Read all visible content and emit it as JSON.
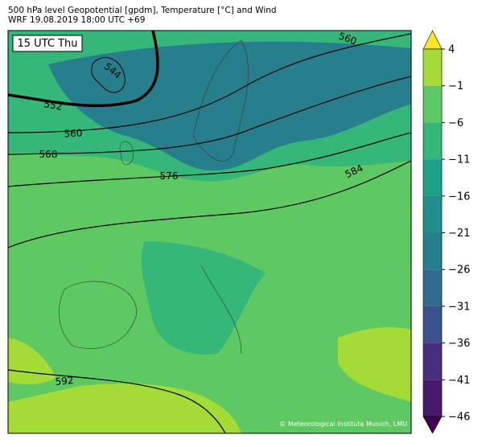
{
  "header": {
    "title": "500 hPa level Geopotential [gpdm], Temperature [°C] and Wind",
    "subtitle": "WRF 19.08.2019 18:00 UTC +69"
  },
  "map": {
    "time_label": "15 UTC Thu",
    "contour_labels": [
      544,
      552,
      560,
      560,
      568,
      576,
      584,
      592
    ],
    "credit": "© Meteorological Institute Munich, LMU"
  },
  "colorbar": {
    "ticks": [
      {
        "value": 4,
        "label": "4"
      },
      {
        "value": -1,
        "label": "−1"
      },
      {
        "value": -6,
        "label": "−6"
      },
      {
        "value": -11,
        "label": "−11"
      },
      {
        "value": -16,
        "label": "−16"
      },
      {
        "value": -21,
        "label": "−21"
      },
      {
        "value": -26,
        "label": "−26"
      },
      {
        "value": -31,
        "label": "−31"
      },
      {
        "value": -36,
        "label": "−36"
      },
      {
        "value": -41,
        "label": "−41"
      },
      {
        "value": -46,
        "label": "−46"
      }
    ],
    "colors": [
      "#a5db36",
      "#5ec962",
      "#35b779",
      "#1fa187",
      "#218e8d",
      "#277f8e",
      "#2f6c8e",
      "#3b528b",
      "#472f7d",
      "#481a6c"
    ],
    "over_color": "#fde725",
    "under_color": "#440154"
  }
}
